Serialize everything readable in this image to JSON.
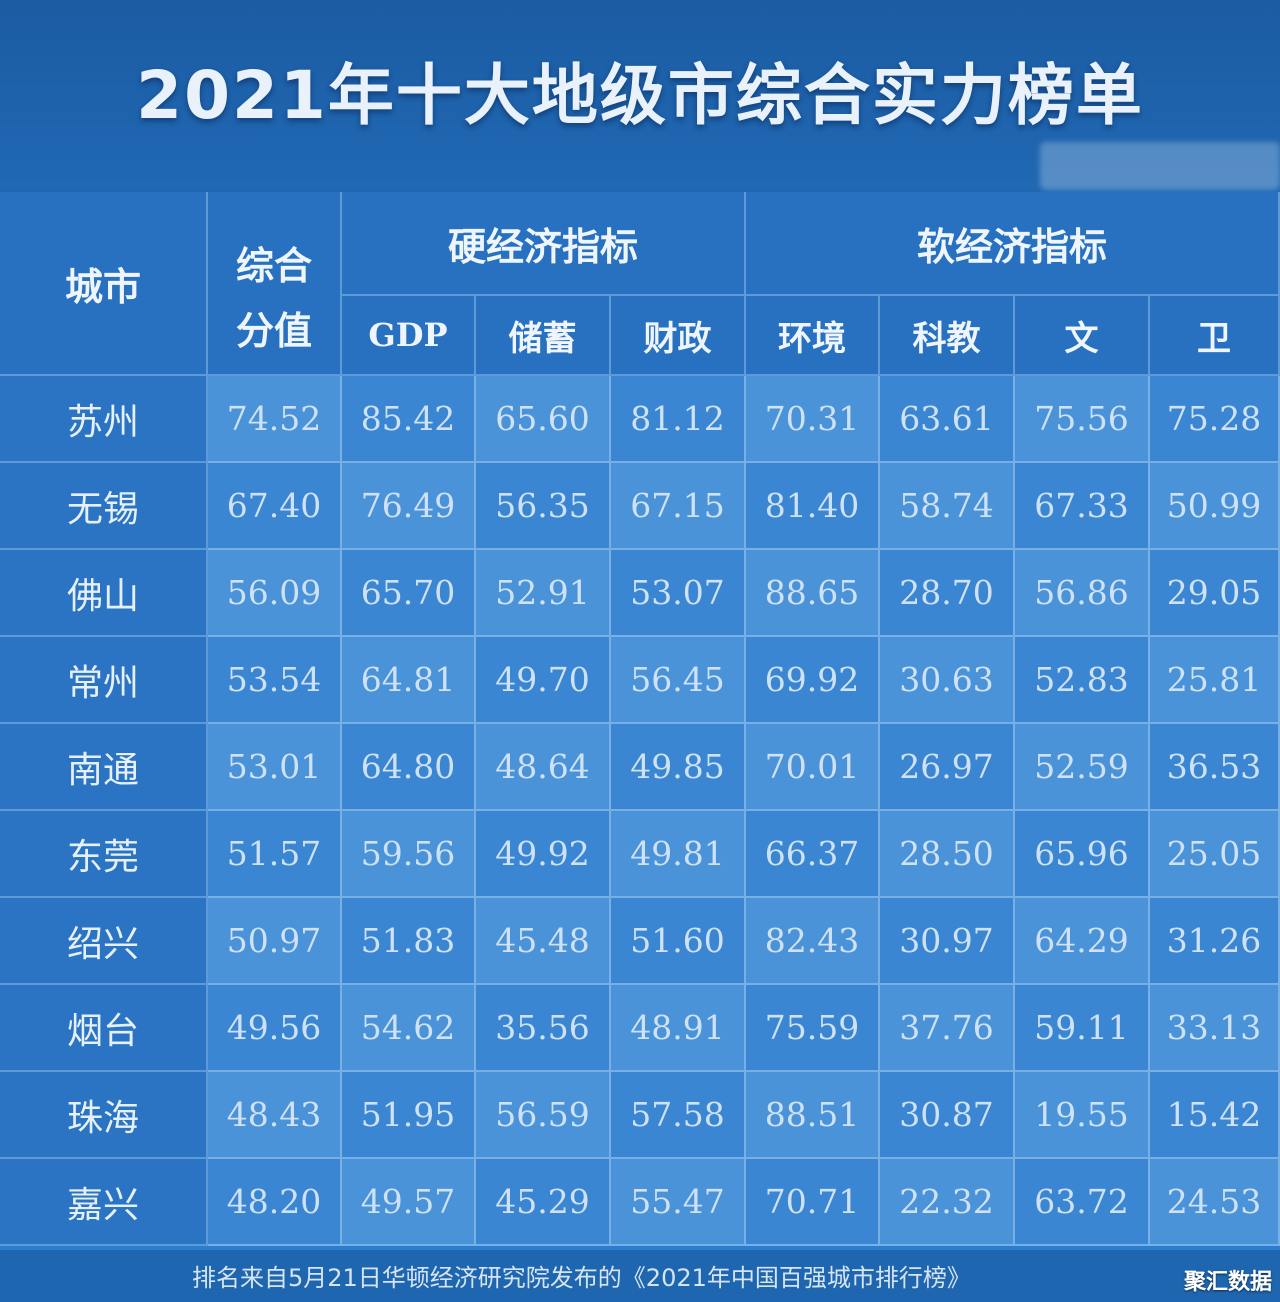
{
  "title": "2021年十大地级市综合实力榜单",
  "header": {
    "city": "城市",
    "overall_line1": "综合",
    "overall_line2": "分值",
    "hard_group": "硬经济指标",
    "soft_group": "软经济指标",
    "gdp": "GDP",
    "savings": "储蓄",
    "finance": "财政",
    "environment": "环境",
    "sci_edu": "科教",
    "culture": "文",
    "health": "卫"
  },
  "footnote": "排名来自5月21日华顿经济研究院发布的《2021年中国百强城市排行榜》",
  "watermark": "聚汇数据",
  "colors": {
    "title_bg": "#1b5ca3",
    "header_bg": "#2870c0",
    "cell_bg": "#3a86d2",
    "text": "#d8e8f8"
  },
  "chart_data": {
    "type": "table",
    "title": "2021年十大地级市综合实力榜单",
    "columns": [
      "城市",
      "综合分值",
      "GDP",
      "储蓄",
      "财政",
      "环境",
      "科教",
      "文",
      "卫"
    ],
    "column_groups": [
      {
        "name": "硬经济指标",
        "columns": [
          "GDP",
          "储蓄",
          "财政"
        ]
      },
      {
        "name": "软经济指标",
        "columns": [
          "环境",
          "科教",
          "文",
          "卫"
        ]
      }
    ],
    "rows": [
      [
        "苏州",
        "74.52",
        "85.42",
        "65.60",
        "81.12",
        "70.31",
        "63.61",
        "75.56",
        "75.28"
      ],
      [
        "无锡",
        "67.40",
        "76.49",
        "56.35",
        "67.15",
        "81.40",
        "58.74",
        "67.33",
        "50.99"
      ],
      [
        "佛山",
        "56.09",
        "65.70",
        "52.91",
        "53.07",
        "88.65",
        "28.70",
        "56.86",
        "29.05"
      ],
      [
        "常州",
        "53.54",
        "64.81",
        "49.70",
        "56.45",
        "69.92",
        "30.63",
        "52.83",
        "25.81"
      ],
      [
        "南通",
        "53.01",
        "64.80",
        "48.64",
        "49.85",
        "70.01",
        "26.97",
        "52.59",
        "36.53"
      ],
      [
        "东莞",
        "51.57",
        "59.56",
        "49.92",
        "49.81",
        "66.37",
        "28.50",
        "65.96",
        "25.05"
      ],
      [
        "绍兴",
        "50.97",
        "51.83",
        "45.48",
        "51.60",
        "82.43",
        "30.97",
        "64.29",
        "31.26"
      ],
      [
        "烟台",
        "49.56",
        "54.62",
        "35.56",
        "48.91",
        "75.59",
        "37.76",
        "59.11",
        "33.13"
      ],
      [
        "珠海",
        "48.43",
        "51.95",
        "56.59",
        "57.58",
        "88.51",
        "30.87",
        "19.55",
        "15.42"
      ],
      [
        "嘉兴",
        "48.20",
        "49.57",
        "45.29",
        "55.47",
        "70.71",
        "22.32",
        "63.72",
        "24.53"
      ]
    ]
  }
}
